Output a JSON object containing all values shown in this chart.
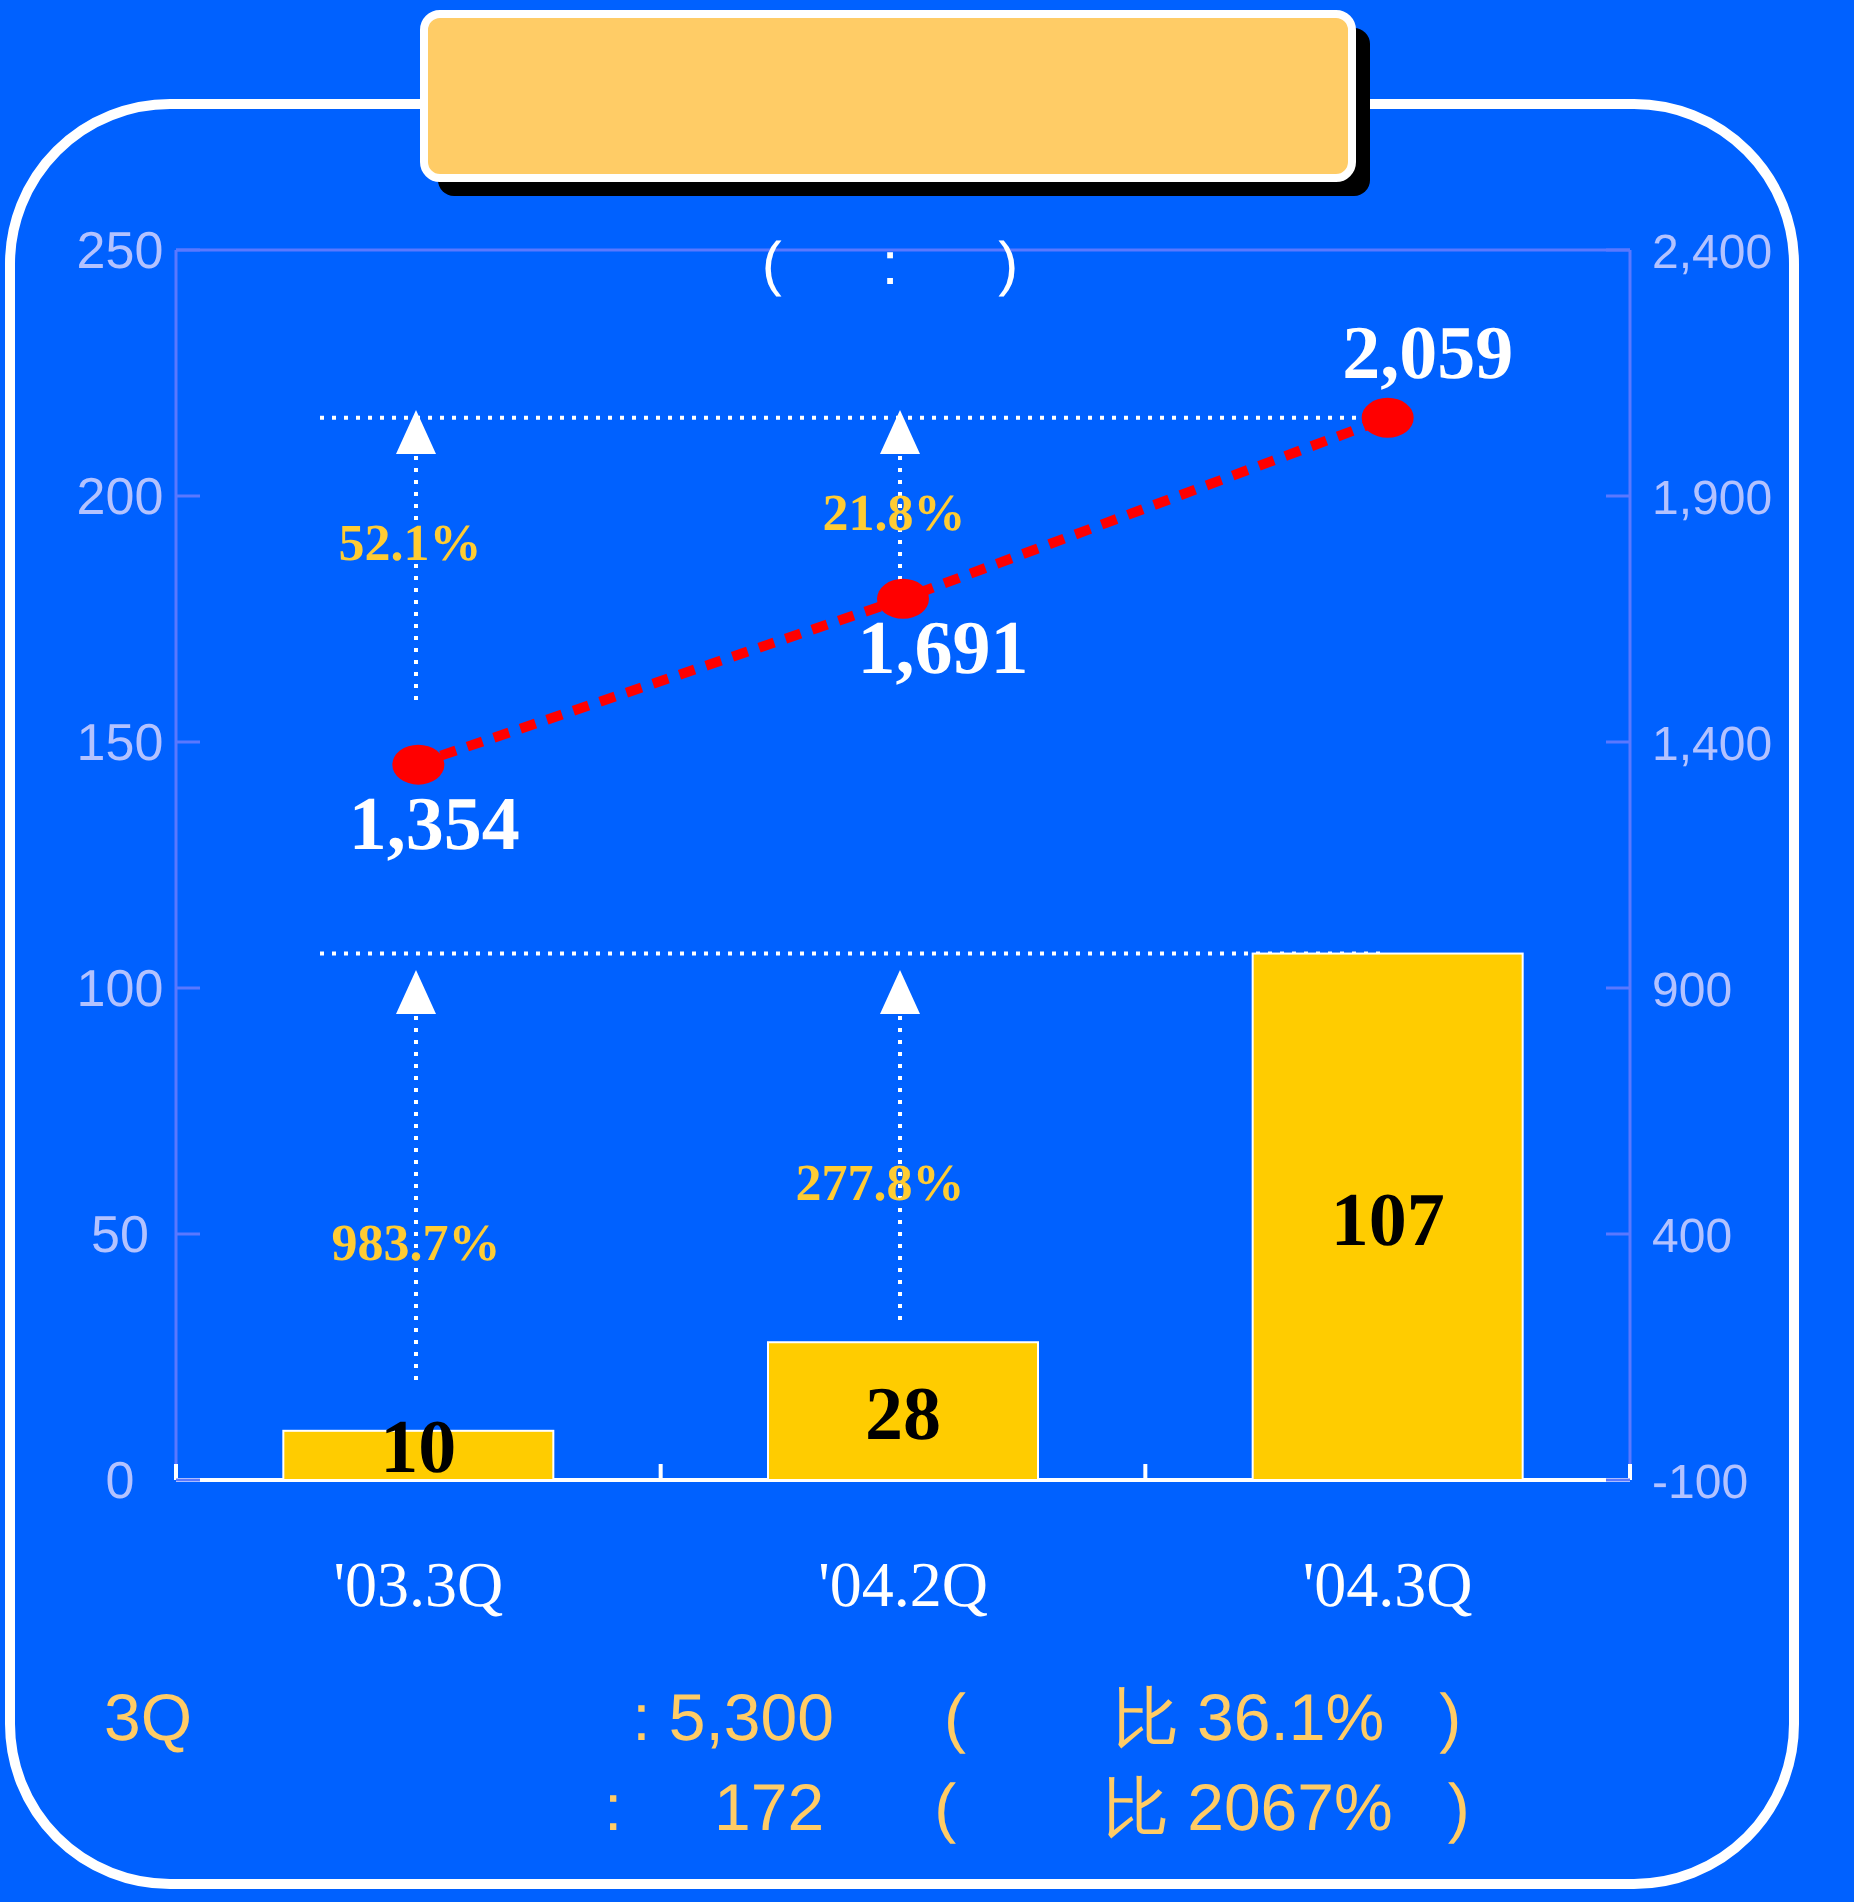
{
  "chart_data": {
    "type": "bar",
    "title": "(      :      )",
    "categories": [
      "'03.3Q",
      "'04.2Q",
      "'04.3Q"
    ],
    "series": [
      {
        "color": "#ffcc00",
        "values": [
          10,
          28,
          107
        ],
        "value_labels": [
          "10",
          "28",
          "107"
        ]
      },
      {
        "type": "line",
        "axis": "y2",
        "color": "#ff0000",
        "values": [
          1354,
          1691,
          2059
        ],
        "value_labels": [
          "1,354",
          "1,691",
          "2,059"
        ],
        "line_style": "dashed",
        "marker": "circle"
      }
    ],
    "ylim": [
      0,
      250
    ],
    "yticks": [
      0,
      50,
      100,
      150,
      200,
      250
    ],
    "y2lim": [
      -100,
      2400
    ],
    "y2ticks": [
      -100,
      400,
      900,
      {
        "value": 1400,
        "label": "1,400"
      },
      {
        "value": 1900,
        "label": "1,900"
      },
      {
        "value": 2400,
        "label": "2,400"
      }
    ],
    "ref_lines": [
      {
        "axis": "y",
        "value": 107,
        "color": "#ffffff",
        "line_style": "dotted"
      },
      {
        "axis": "y2",
        "value": 2059,
        "color": "#ffffff",
        "line_style": "dotted"
      }
    ],
    "annotations": [
      "983.7%",
      "277.8%",
      "52.1%",
      "21.8%",
      "3Q                        : 5,300      (        比 36.1%   )",
      ":     172      (        比 2067%   )"
    ],
    "grid": false
  }
}
